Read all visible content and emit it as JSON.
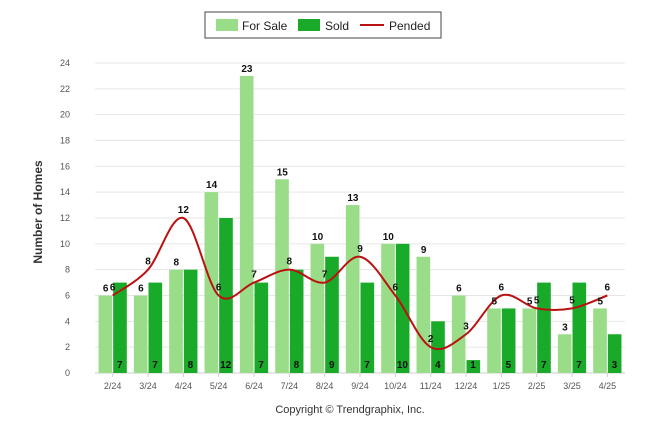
{
  "chart_data": {
    "type": "bar",
    "categories": [
      "2/24",
      "3/24",
      "4/24",
      "5/24",
      "6/24",
      "7/24",
      "8/24",
      "9/24",
      "10/24",
      "11/24",
      "12/24",
      "1/25",
      "2/25",
      "3/25",
      "4/25"
    ],
    "series": [
      {
        "name": "For Sale",
        "kind": "bar",
        "color": "#99dd88",
        "values": [
          6,
          6,
          8,
          14,
          23,
          15,
          10,
          13,
          10,
          9,
          6,
          5,
          5,
          3,
          5
        ]
      },
      {
        "name": "Sold",
        "kind": "bar",
        "color": "#1aaa2a",
        "values": [
          7,
          7,
          8,
          12,
          7,
          8,
          9,
          7,
          10,
          4,
          1,
          5,
          7,
          7,
          3
        ]
      },
      {
        "name": "Pended",
        "kind": "line",
        "color": "#bb1111",
        "values": [
          6,
          8,
          12,
          6,
          7,
          8,
          7,
          9,
          6,
          2,
          3,
          6,
          5,
          5,
          6
        ]
      }
    ],
    "ylabel": "Number of Homes",
    "ylim": [
      0,
      24
    ],
    "yticks": [
      0,
      2,
      4,
      6,
      8,
      10,
      12,
      14,
      16,
      18,
      20,
      22,
      24
    ],
    "grid": true,
    "legend_position": "top-center",
    "footer": "Copyright © Trendgraphix, Inc."
  }
}
